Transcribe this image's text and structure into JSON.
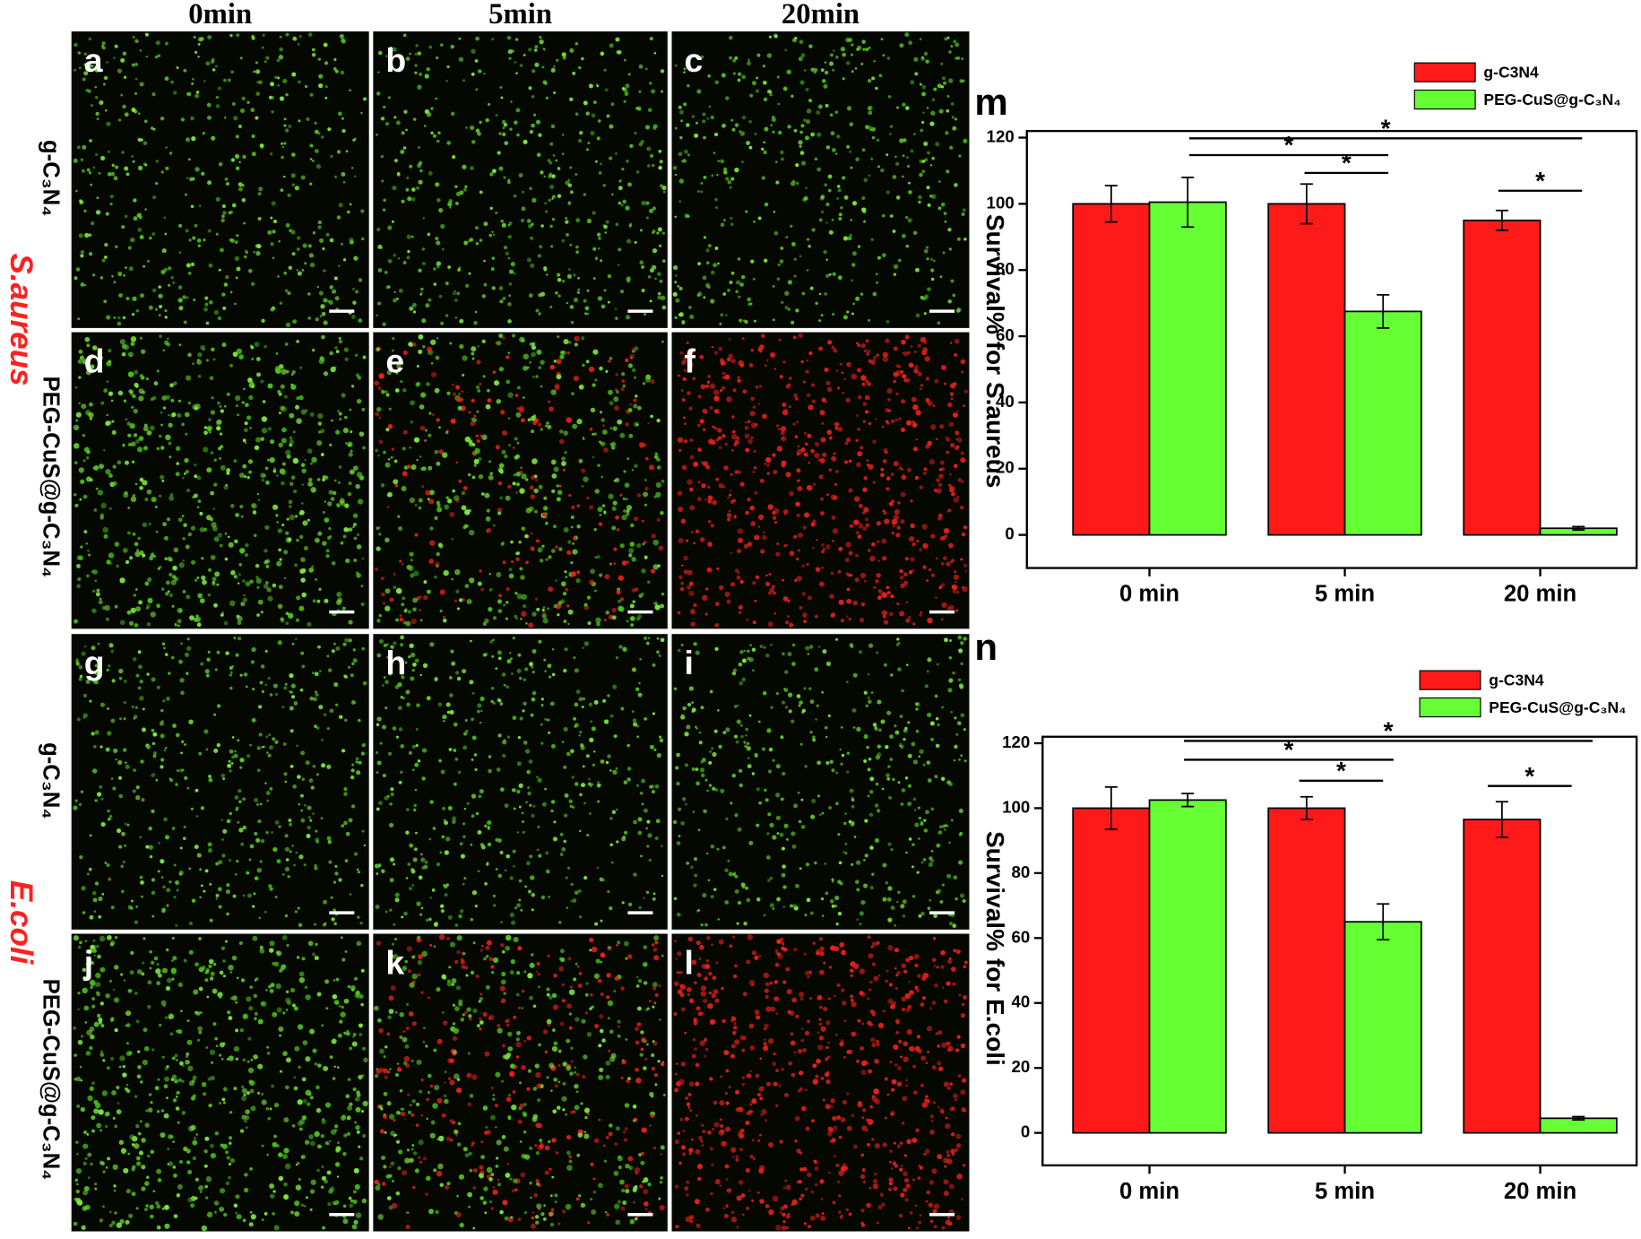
{
  "figure": {
    "column_headers": [
      "0min",
      "5min",
      "20min"
    ],
    "row_labels": [
      "g-C₃N₄",
      "PEG-CuS@g-C₃N₄",
      "g-C₃N₄",
      "PEG-CuS@g-C₃N₄"
    ],
    "species": [
      "S.aureus",
      "E.coli"
    ],
    "panel_letters": [
      "a",
      "b",
      "c",
      "d",
      "e",
      "f",
      "g",
      "h",
      "i",
      "j",
      "k",
      "l"
    ]
  },
  "chart_data": [
    {
      "type": "bar",
      "panel": "m",
      "ylabel": "Survival% for S.aureus",
      "categories": [
        "0 min",
        "5 min",
        "20 min"
      ],
      "series": [
        {
          "name": "g-C3N4",
          "color": "#ff1a1a",
          "values": [
            100,
            100,
            95
          ],
          "errors": [
            5.5,
            6,
            3
          ]
        },
        {
          "name": "PEG-CuS@g-C₃N₄",
          "color": "#66ff33",
          "values": [
            100.5,
            67.5,
            2
          ],
          "errors": [
            7.5,
            5,
            0.5
          ]
        }
      ],
      "ylim": [
        -10,
        122
      ],
      "yticks": [
        0,
        20,
        40,
        60,
        80,
        100,
        120
      ],
      "annotations": [
        "*",
        "*",
        "*",
        "*"
      ]
    },
    {
      "type": "bar",
      "panel": "n",
      "ylabel": "Survival% for E.coli",
      "categories": [
        "0 min",
        "5 min",
        "20 min"
      ],
      "series": [
        {
          "name": "g-C3N4",
          "color": "#ff1a1a",
          "values": [
            100,
            100,
            96.5
          ],
          "errors": [
            6.5,
            3.5,
            5.5
          ]
        },
        {
          "name": "PEG-CuS@g-C₃N₄",
          "color": "#66ff33",
          "values": [
            102.5,
            65,
            4.5
          ],
          "errors": [
            2,
            5.5,
            0.5
          ]
        }
      ],
      "ylim": [
        -10,
        122
      ],
      "yticks": [
        0,
        20,
        40,
        60,
        80,
        100,
        120
      ],
      "annotations": [
        "*",
        "*",
        "*",
        "*"
      ]
    }
  ]
}
